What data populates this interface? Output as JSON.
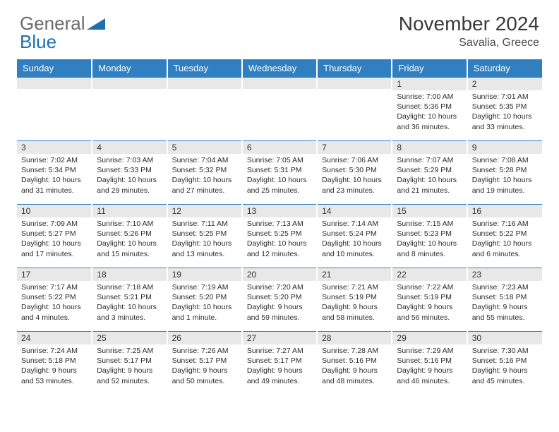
{
  "logo": {
    "text1": "General",
    "text2": "Blue"
  },
  "colors": {
    "header_bg": "#2f7fc1",
    "header_text": "#ffffff",
    "daynum_bg": "#e8e8e8",
    "border": "#2f7fc1",
    "logo_gray": "#6a6a6a",
    "logo_blue": "#1e6fb0"
  },
  "title": {
    "month": "November 2024",
    "location": "Savalia, Greece"
  },
  "weekdays": [
    "Sunday",
    "Monday",
    "Tuesday",
    "Wednesday",
    "Thursday",
    "Friday",
    "Saturday"
  ],
  "weeks": [
    [
      {
        "n": "",
        "sr": "",
        "ss": "",
        "dl": ""
      },
      {
        "n": "",
        "sr": "",
        "ss": "",
        "dl": ""
      },
      {
        "n": "",
        "sr": "",
        "ss": "",
        "dl": ""
      },
      {
        "n": "",
        "sr": "",
        "ss": "",
        "dl": ""
      },
      {
        "n": "",
        "sr": "",
        "ss": "",
        "dl": ""
      },
      {
        "n": "1",
        "sr": "Sunrise: 7:00 AM",
        "ss": "Sunset: 5:36 PM",
        "dl": "Daylight: 10 hours and 36 minutes."
      },
      {
        "n": "2",
        "sr": "Sunrise: 7:01 AM",
        "ss": "Sunset: 5:35 PM",
        "dl": "Daylight: 10 hours and 33 minutes."
      }
    ],
    [
      {
        "n": "3",
        "sr": "Sunrise: 7:02 AM",
        "ss": "Sunset: 5:34 PM",
        "dl": "Daylight: 10 hours and 31 minutes."
      },
      {
        "n": "4",
        "sr": "Sunrise: 7:03 AM",
        "ss": "Sunset: 5:33 PM",
        "dl": "Daylight: 10 hours and 29 minutes."
      },
      {
        "n": "5",
        "sr": "Sunrise: 7:04 AM",
        "ss": "Sunset: 5:32 PM",
        "dl": "Daylight: 10 hours and 27 minutes."
      },
      {
        "n": "6",
        "sr": "Sunrise: 7:05 AM",
        "ss": "Sunset: 5:31 PM",
        "dl": "Daylight: 10 hours and 25 minutes."
      },
      {
        "n": "7",
        "sr": "Sunrise: 7:06 AM",
        "ss": "Sunset: 5:30 PM",
        "dl": "Daylight: 10 hours and 23 minutes."
      },
      {
        "n": "8",
        "sr": "Sunrise: 7:07 AM",
        "ss": "Sunset: 5:29 PM",
        "dl": "Daylight: 10 hours and 21 minutes."
      },
      {
        "n": "9",
        "sr": "Sunrise: 7:08 AM",
        "ss": "Sunset: 5:28 PM",
        "dl": "Daylight: 10 hours and 19 minutes."
      }
    ],
    [
      {
        "n": "10",
        "sr": "Sunrise: 7:09 AM",
        "ss": "Sunset: 5:27 PM",
        "dl": "Daylight: 10 hours and 17 minutes."
      },
      {
        "n": "11",
        "sr": "Sunrise: 7:10 AM",
        "ss": "Sunset: 5:26 PM",
        "dl": "Daylight: 10 hours and 15 minutes."
      },
      {
        "n": "12",
        "sr": "Sunrise: 7:11 AM",
        "ss": "Sunset: 5:25 PM",
        "dl": "Daylight: 10 hours and 13 minutes."
      },
      {
        "n": "13",
        "sr": "Sunrise: 7:13 AM",
        "ss": "Sunset: 5:25 PM",
        "dl": "Daylight: 10 hours and 12 minutes."
      },
      {
        "n": "14",
        "sr": "Sunrise: 7:14 AM",
        "ss": "Sunset: 5:24 PM",
        "dl": "Daylight: 10 hours and 10 minutes."
      },
      {
        "n": "15",
        "sr": "Sunrise: 7:15 AM",
        "ss": "Sunset: 5:23 PM",
        "dl": "Daylight: 10 hours and 8 minutes."
      },
      {
        "n": "16",
        "sr": "Sunrise: 7:16 AM",
        "ss": "Sunset: 5:22 PM",
        "dl": "Daylight: 10 hours and 6 minutes."
      }
    ],
    [
      {
        "n": "17",
        "sr": "Sunrise: 7:17 AM",
        "ss": "Sunset: 5:22 PM",
        "dl": "Daylight: 10 hours and 4 minutes."
      },
      {
        "n": "18",
        "sr": "Sunrise: 7:18 AM",
        "ss": "Sunset: 5:21 PM",
        "dl": "Daylight: 10 hours and 3 minutes."
      },
      {
        "n": "19",
        "sr": "Sunrise: 7:19 AM",
        "ss": "Sunset: 5:20 PM",
        "dl": "Daylight: 10 hours and 1 minute."
      },
      {
        "n": "20",
        "sr": "Sunrise: 7:20 AM",
        "ss": "Sunset: 5:20 PM",
        "dl": "Daylight: 9 hours and 59 minutes."
      },
      {
        "n": "21",
        "sr": "Sunrise: 7:21 AM",
        "ss": "Sunset: 5:19 PM",
        "dl": "Daylight: 9 hours and 58 minutes."
      },
      {
        "n": "22",
        "sr": "Sunrise: 7:22 AM",
        "ss": "Sunset: 5:19 PM",
        "dl": "Daylight: 9 hours and 56 minutes."
      },
      {
        "n": "23",
        "sr": "Sunrise: 7:23 AM",
        "ss": "Sunset: 5:18 PM",
        "dl": "Daylight: 9 hours and 55 minutes."
      }
    ],
    [
      {
        "n": "24",
        "sr": "Sunrise: 7:24 AM",
        "ss": "Sunset: 5:18 PM",
        "dl": "Daylight: 9 hours and 53 minutes."
      },
      {
        "n": "25",
        "sr": "Sunrise: 7:25 AM",
        "ss": "Sunset: 5:17 PM",
        "dl": "Daylight: 9 hours and 52 minutes."
      },
      {
        "n": "26",
        "sr": "Sunrise: 7:26 AM",
        "ss": "Sunset: 5:17 PM",
        "dl": "Daylight: 9 hours and 50 minutes."
      },
      {
        "n": "27",
        "sr": "Sunrise: 7:27 AM",
        "ss": "Sunset: 5:17 PM",
        "dl": "Daylight: 9 hours and 49 minutes."
      },
      {
        "n": "28",
        "sr": "Sunrise: 7:28 AM",
        "ss": "Sunset: 5:16 PM",
        "dl": "Daylight: 9 hours and 48 minutes."
      },
      {
        "n": "29",
        "sr": "Sunrise: 7:29 AM",
        "ss": "Sunset: 5:16 PM",
        "dl": "Daylight: 9 hours and 46 minutes."
      },
      {
        "n": "30",
        "sr": "Sunrise: 7:30 AM",
        "ss": "Sunset: 5:16 PM",
        "dl": "Daylight: 9 hours and 45 minutes."
      }
    ]
  ]
}
